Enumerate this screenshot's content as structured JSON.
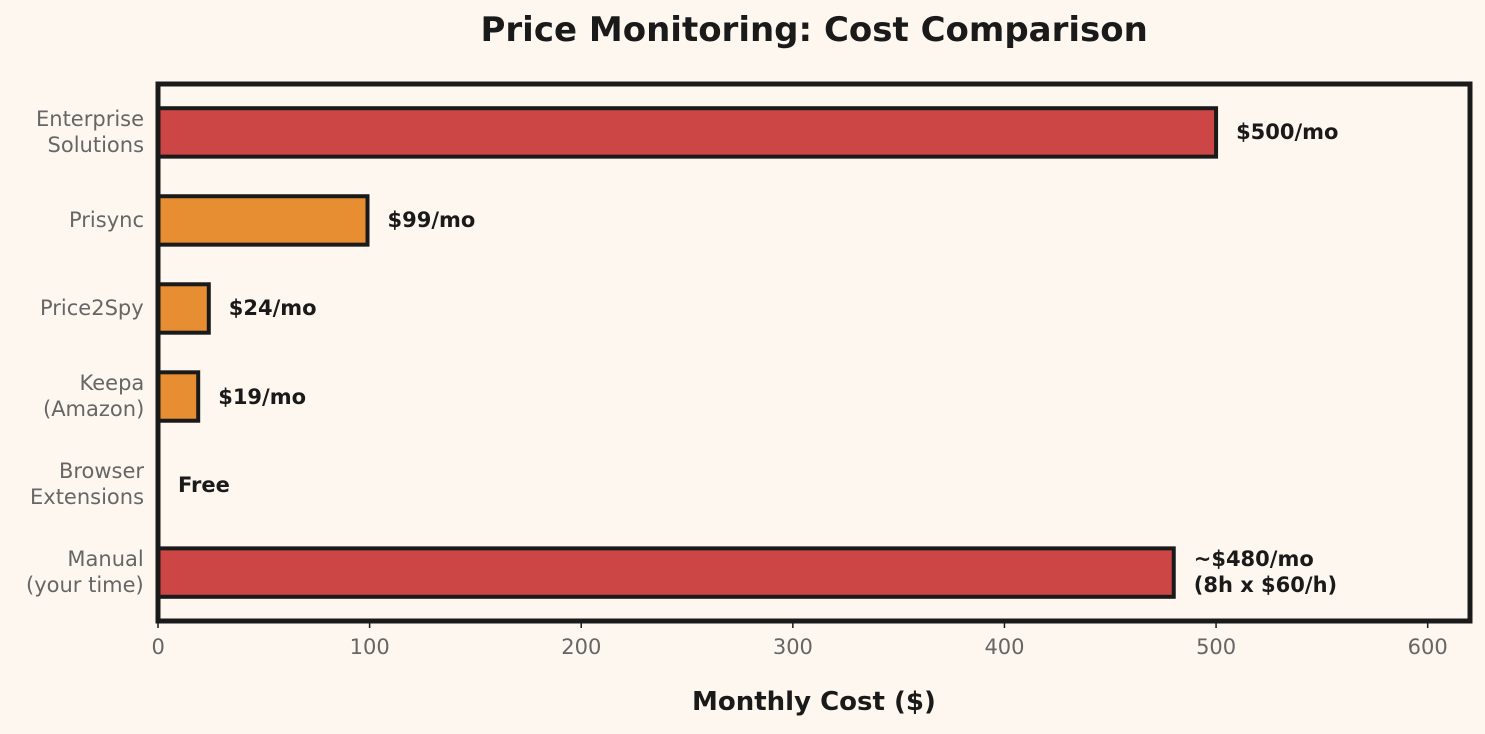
{
  "chart_data": {
    "type": "barh",
    "title": "Price Monitoring: Cost Comparison",
    "x_label": "Monthly Cost ($)",
    "categories": [
      "Enterprise\nSolutions",
      "Prisync",
      "Price2Spy",
      "Keepa\n(Amazon)",
      "Browser\nExtensions",
      "Manual\n(your time)"
    ],
    "values": [
      500,
      99,
      24,
      19,
      0,
      480
    ],
    "value_labels": [
      "$500/mo",
      "$99/mo",
      "$24/mo",
      "$19/mo",
      "Free",
      "~$480/mo\n(8h x $60/h)"
    ],
    "colors": [
      "#cc4646",
      "#e88e32",
      "#e88e32",
      "#e88e32",
      "#e88e32",
      "#cc4646"
    ],
    "xlim": [
      0,
      620
    ],
    "xticks": [
      0,
      100,
      200,
      300,
      400,
      500,
      600
    ],
    "grid": false
  }
}
